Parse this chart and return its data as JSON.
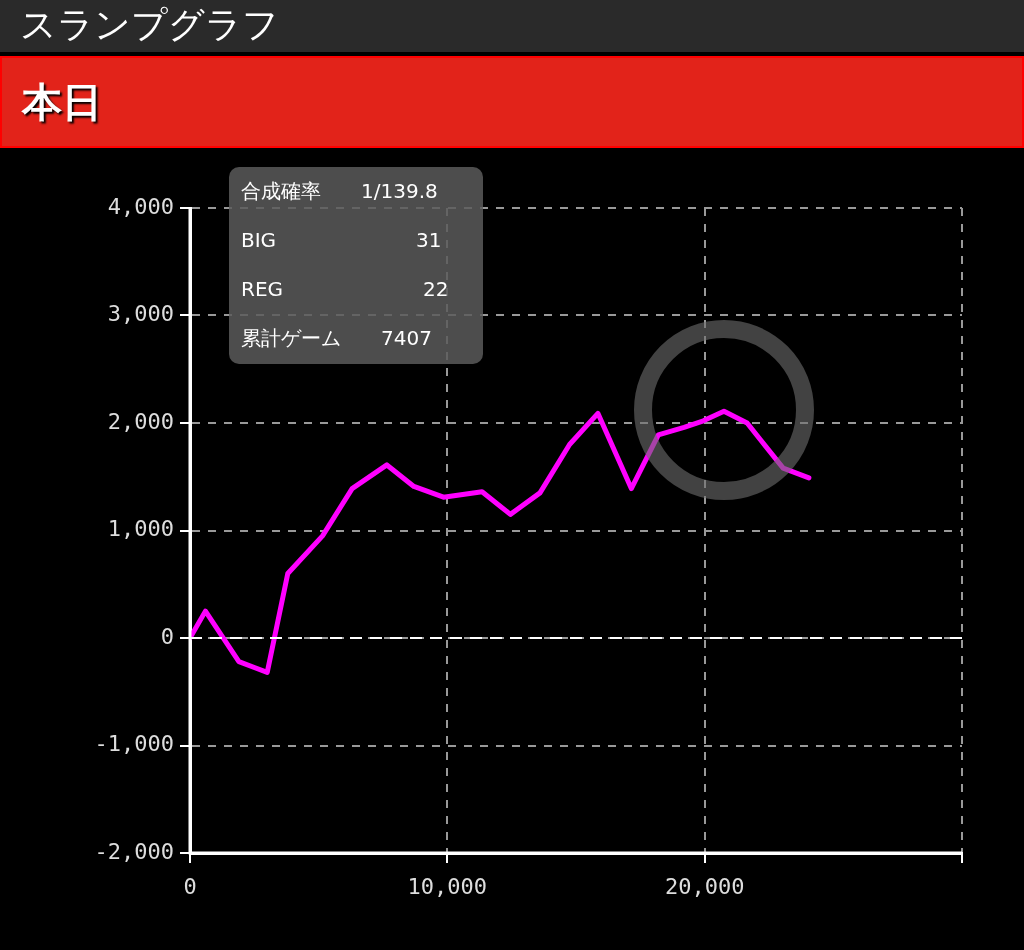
{
  "chart_data": {
    "type": "line",
    "title": "スランプグラフ",
    "subtitle": "本日",
    "annotations": [
      "合成確率　　1/139.8",
      "BIG　　　　　　　31",
      "REG　　　　　　　22",
      "累計ゲーム　　7407"
    ],
    "x": [
      0,
      600,
      1900,
      3000,
      3800,
      5150,
      6300,
      7650,
      8700,
      9850,
      11350,
      12450,
      13600,
      14750,
      15850,
      17150,
      18200,
      19200,
      19950,
      20750,
      21650,
      23050,
      24050
    ],
    "series": [
      {
        "color": "#ff00ff",
        "values": [
          0,
          250,
          -220,
          -320,
          600,
          950,
          1390,
          1610,
          1410,
          1310,
          1360,
          1150,
          1350,
          1800,
          2090,
          1390,
          1890,
          1960,
          2020,
          2110,
          2000,
          1580,
          1490
        ]
      }
    ],
    "xlim": [
      0,
      30000
    ],
    "xticks": [
      0,
      {
        "value": 10000,
        "label": "10,000"
      },
      {
        "value": 20000,
        "label": "20,000"
      },
      {
        "value": 30000,
        "label": null
      }
    ],
    "ylim": [
      -2000,
      4000
    ],
    "yticks": [
      {
        "value": -2000,
        "label": "-2,000"
      },
      {
        "value": -1000,
        "label": "-1,000"
      },
      0,
      {
        "value": 1000,
        "label": "1,000"
      },
      {
        "value": 2000,
        "label": "2,000"
      },
      {
        "value": 3000,
        "label": "3,000"
      },
      {
        "value": 4000,
        "label": "4,000"
      }
    ],
    "ref_lines": [
      {
        "axis": "y",
        "value": 0,
        "color": "#ffffff",
        "line_style": "dashed"
      }
    ],
    "grid": true,
    "legend": false,
    "marker": "none",
    "line_style": "solid"
  }
}
